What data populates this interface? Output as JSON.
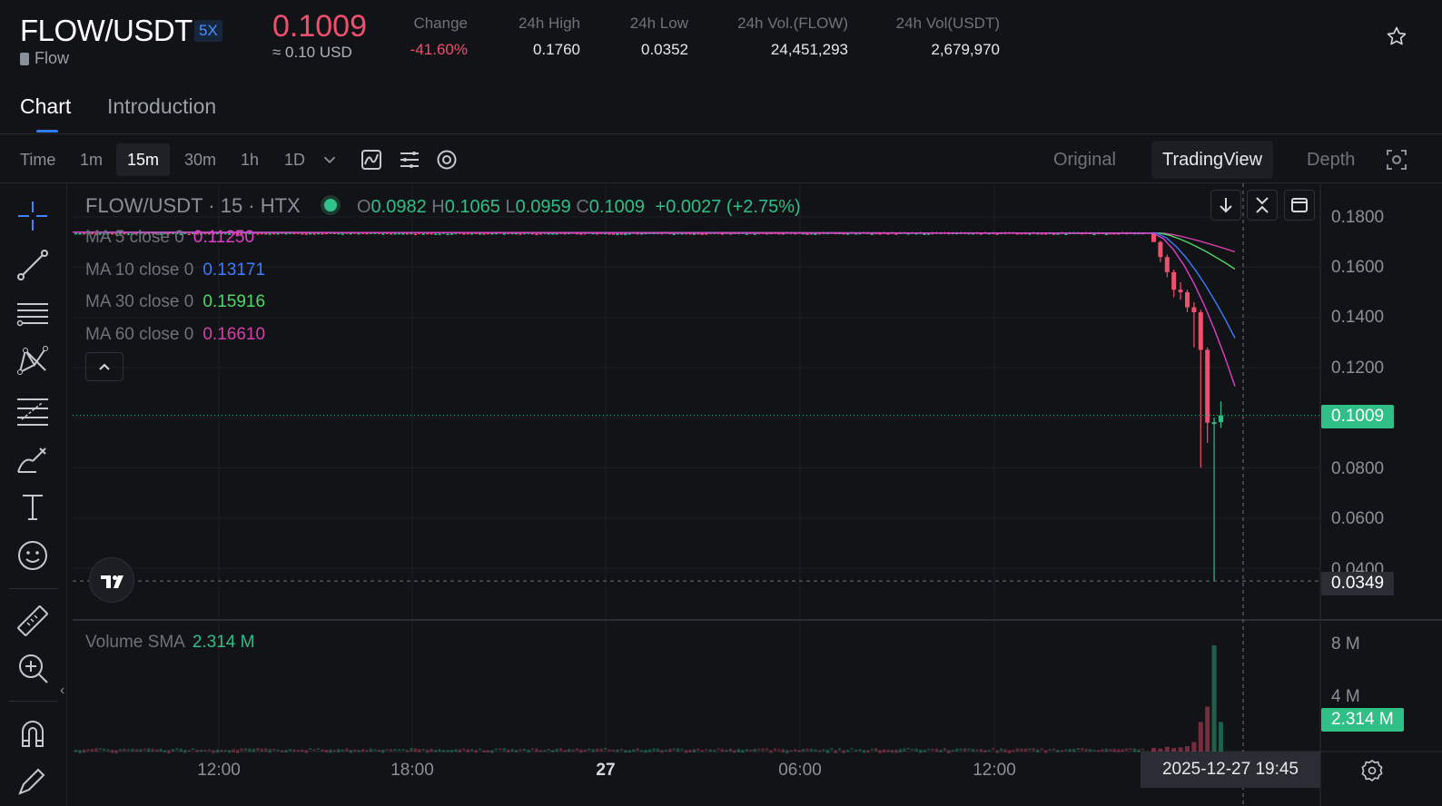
{
  "header": {
    "pair": "FLOW/USDT",
    "leverage": "5X",
    "coin_name": "Flow",
    "last_price": "0.1009",
    "usd_price": "≈ 0.10 USD",
    "stats": [
      {
        "label": "Change",
        "value": "-41.60%",
        "negative": true
      },
      {
        "label": "24h High",
        "value": "0.1760"
      },
      {
        "label": "24h Low",
        "value": "0.0352"
      },
      {
        "label": "24h Vol.(FLOW)",
        "value": "24,451,293"
      },
      {
        "label": "24h Vol(USDT)",
        "value": "2,679,970"
      }
    ],
    "favorite_icon": "star-outline-icon"
  },
  "tabs": [
    {
      "label": "Chart",
      "active": true
    },
    {
      "label": "Introduction",
      "active": false
    }
  ],
  "toolbar": {
    "timeframes": [
      "Time",
      "1m",
      "15m",
      "30m",
      "1h",
      "1D"
    ],
    "active_timeframe": "15m",
    "views": [
      {
        "label": "Original",
        "active": false
      },
      {
        "label": "TradingView",
        "active": true
      },
      {
        "label": "Depth",
        "active": false
      }
    ]
  },
  "left_tools": [
    "crosshair-icon",
    "trend-line-icon",
    "parallel-lines-icon",
    "pattern-icon",
    "fib-retracement-icon",
    "brush-icon",
    "text-icon",
    "emoji-icon",
    "ruler-icon",
    "zoom-in-icon",
    "magnet-icon",
    "pencil-lock-icon"
  ],
  "legend": {
    "symbol": "FLOW/USDT · 15 · HTX",
    "o_label": "O",
    "o": "0.0982",
    "h_label": "H",
    "h": "0.1065",
    "l_label": "L",
    "l": "0.0959",
    "c_label": "C",
    "c": "0.1009",
    "change": "+0.0027 (+2.75%)",
    "ma": [
      {
        "label": "MA 5 close 0",
        "value": "0.11250",
        "color": "#e040c8"
      },
      {
        "label": "MA 10 close 0",
        "value": "0.13171",
        "color": "#3d7cff"
      },
      {
        "label": "MA 30 close 0",
        "value": "0.15916",
        "color": "#4cd964"
      },
      {
        "label": "MA 60 close 0",
        "value": "0.16610",
        "color": "#d63fa8"
      }
    ],
    "volume_label": "Volume SMA",
    "volume_value": "2.314 M"
  },
  "price_axis": {
    "ticks": [
      "0.1800",
      "0.1600",
      "0.1400",
      "0.1200",
      "0.0800",
      "0.0600",
      "0.0400"
    ],
    "current_price_tag": "0.1009",
    "crosshair_price_tag": "0.0349",
    "volume_ticks": [
      "8 M",
      "4 M"
    ],
    "volume_tag": "2.314 M"
  },
  "time_axis": {
    "labels": [
      {
        "text": "12:00",
        "bold": false
      },
      {
        "text": "18:00",
        "bold": false
      },
      {
        "text": "27",
        "bold": true
      },
      {
        "text": "06:00",
        "bold": false
      },
      {
        "text": "12:00",
        "bold": false
      }
    ],
    "crosshair_time": "2025-12-27   19:45"
  },
  "colors": {
    "up": "#2fbf87",
    "down": "#f0506e",
    "accent": "#2f7cf6",
    "background": "#111316"
  },
  "chart_data": {
    "type": "candlestick",
    "ylim": [
      0.03,
      0.19
    ],
    "volume_ylim": [
      0,
      10000000
    ],
    "flat_price_approx": 0.1735,
    "crash_candles": [
      {
        "o": 0.1735,
        "h": 0.174,
        "l": 0.17,
        "c": 0.17
      },
      {
        "o": 0.17,
        "h": 0.1705,
        "l": 0.162,
        "c": 0.164
      },
      {
        "o": 0.164,
        "h": 0.165,
        "l": 0.156,
        "c": 0.158
      },
      {
        "o": 0.158,
        "h": 0.159,
        "l": 0.148,
        "c": 0.151
      },
      {
        "o": 0.151,
        "h": 0.154,
        "l": 0.147,
        "c": 0.15
      },
      {
        "o": 0.15,
        "h": 0.151,
        "l": 0.142,
        "c": 0.144
      },
      {
        "o": 0.144,
        "h": 0.146,
        "l": 0.128,
        "c": 0.142
      },
      {
        "o": 0.142,
        "h": 0.143,
        "l": 0.08,
        "c": 0.127
      },
      {
        "o": 0.127,
        "h": 0.128,
        "l": 0.09,
        "c": 0.098
      },
      {
        "o": 0.098,
        "h": 0.1,
        "l": 0.0349,
        "c": 0.0982
      },
      {
        "o": 0.0982,
        "h": 0.1065,
        "l": 0.0959,
        "c": 0.1009
      }
    ],
    "crash_volumes": [
      300000,
      250000,
      400000,
      300000,
      350000,
      450000,
      800000,
      2500000,
      3800000,
      9000000,
      2500000
    ]
  }
}
